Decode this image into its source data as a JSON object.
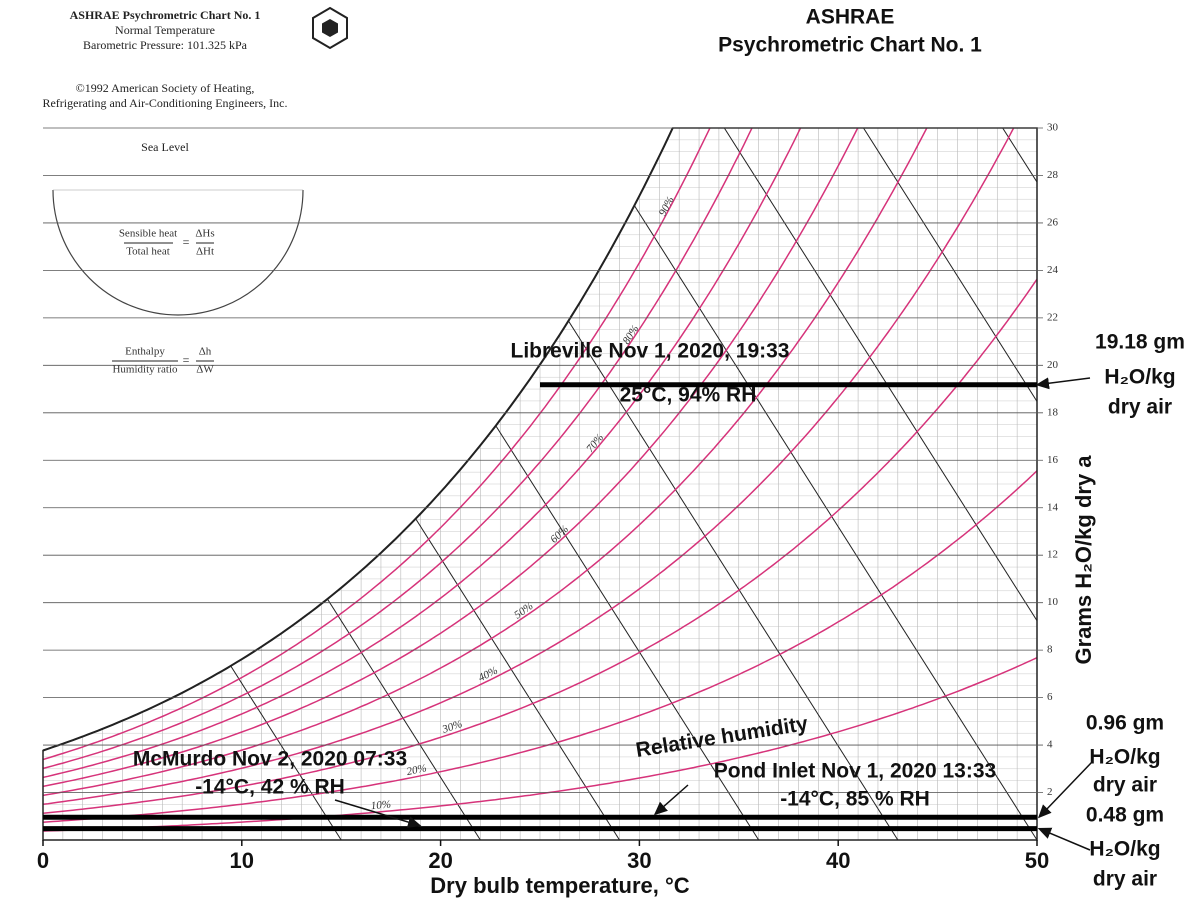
{
  "header": {
    "left_lines": [
      "ASHRAE Psychrometric Chart No. 1",
      "Normal Temperature",
      "Barometric Pressure: 101.325 kPa",
      "©1992 American Society of Heating,",
      "Refrigerating and Air-Conditioning Engineers, Inc.",
      "Sea Level"
    ],
    "protractor": [
      "Sensible heat",
      "Total heat",
      "ΔHs",
      "ΔHt",
      "Enthalpy",
      "Humidity ratio",
      "Δh",
      "ΔW"
    ],
    "title_lines": [
      "ASHRAE",
      "Psychrometric Chart No. 1"
    ]
  },
  "chart_data": {
    "type": "psychrometric",
    "pressure_kpa": 101.325,
    "xlabel": "Dry bulb temperature, °C",
    "ylabel": "Grams H₂O/kg dry a",
    "xlim": [
      0,
      50
    ],
    "xticks": [
      0,
      10,
      20,
      30,
      40,
      50
    ],
    "y2lim": [
      0,
      30
    ],
    "y2ticks": [
      2,
      4,
      6,
      8,
      10,
      12,
      14,
      16,
      18,
      20,
      22,
      24,
      26,
      28,
      30
    ],
    "rh_curves": [
      {
        "value": 10,
        "label": "10%"
      },
      {
        "value": 20,
        "label": "20%"
      },
      {
        "value": 30,
        "label": "30%"
      },
      {
        "value": 40,
        "label": "40%"
      },
      {
        "value": 50,
        "label": "50%"
      },
      {
        "value": 60,
        "label": "60%"
      },
      {
        "value": 70,
        "label": "70%"
      },
      {
        "value": 80,
        "label": "80%"
      },
      {
        "value": 90,
        "label": "90%"
      }
    ],
    "rh_label": "Relative humidity",
    "curve_color": "#d6337a",
    "annotations": [
      {
        "name": "Libreville Nov 1, 2020, 19:33",
        "detail": "25°C, 94% RH",
        "temp": 25,
        "value": 19.18,
        "value_labels": [
          "19.18 gm",
          "H₂O/kg",
          "dry air"
        ]
      },
      {
        "name": "Pond Inlet Nov 1, 2020 13:33",
        "detail": "-14°C, 85 % RH",
        "temp": -14,
        "value": 0.96,
        "value_labels": [
          "0.96 gm",
          "H₂O/kg",
          "dry air"
        ]
      },
      {
        "name": "McMurdo Nov 2, 2020 07:33",
        "detail": "-14°C, 42 % RH",
        "temp": -14,
        "value": 0.48,
        "value_labels": [
          "0.48 gm",
          "H₂O/kg",
          "dry air"
        ]
      }
    ]
  }
}
